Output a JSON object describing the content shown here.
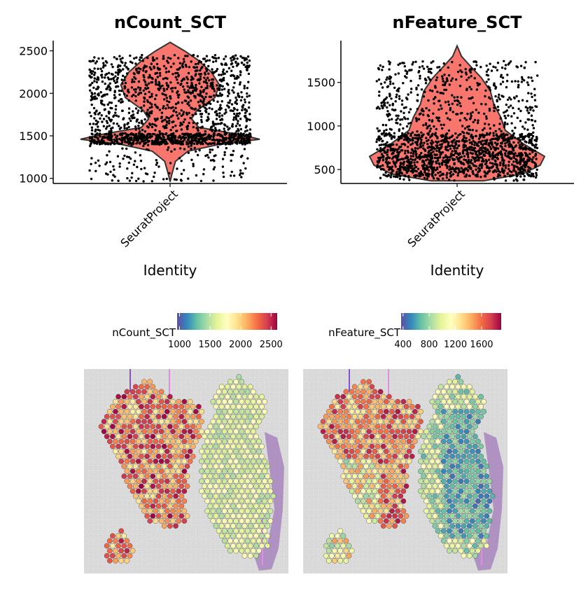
{
  "chart_data": [
    {
      "type": "violin",
      "title": "nCount_SCT",
      "xlabel": "Identity",
      "ylabel": "",
      "categories": [
        "SeuratProject"
      ],
      "ylim": [
        940,
        2620
      ],
      "yticks": [
        1000,
        1500,
        2000,
        2500
      ],
      "fill": "#F8766D",
      "density_profile": [
        {
          "y": 960,
          "w": 0.0
        },
        {
          "y": 1050,
          "w": 0.02
        },
        {
          "y": 1200,
          "w": 0.06
        },
        {
          "y": 1320,
          "w": 0.2
        },
        {
          "y": 1400,
          "w": 0.55
        },
        {
          "y": 1460,
          "w": 1.0
        },
        {
          "y": 1520,
          "w": 0.75
        },
        {
          "y": 1600,
          "w": 0.32
        },
        {
          "y": 1700,
          "w": 0.24
        },
        {
          "y": 1800,
          "w": 0.3
        },
        {
          "y": 1950,
          "w": 0.5
        },
        {
          "y": 2100,
          "w": 0.55
        },
        {
          "y": 2250,
          "w": 0.46
        },
        {
          "y": 2400,
          "w": 0.3
        },
        {
          "y": 2500,
          "w": 0.16
        },
        {
          "y": 2600,
          "w": 0.0
        }
      ],
      "points": {
        "n": 1800,
        "range": [
          960,
          2600
        ],
        "color": "#000000"
      }
    },
    {
      "type": "violin",
      "title": "nFeature_SCT",
      "xlabel": "Identity",
      "ylabel": "",
      "categories": [
        "SeuratProject"
      ],
      "ylim": [
        340,
        1980
      ],
      "yticks": [
        500,
        1000,
        1500
      ],
      "fill": "#F8766D",
      "density_profile": [
        {
          "y": 370,
          "w": 0.3
        },
        {
          "y": 450,
          "w": 0.75
        },
        {
          "y": 550,
          "w": 0.95
        },
        {
          "y": 650,
          "w": 1.0
        },
        {
          "y": 800,
          "w": 0.75
        },
        {
          "y": 950,
          "w": 0.55
        },
        {
          "y": 1100,
          "w": 0.5
        },
        {
          "y": 1250,
          "w": 0.42
        },
        {
          "y": 1400,
          "w": 0.38
        },
        {
          "y": 1550,
          "w": 0.28
        },
        {
          "y": 1700,
          "w": 0.14
        },
        {
          "y": 1800,
          "w": 0.05
        },
        {
          "y": 1920,
          "w": 0.0
        }
      ],
      "points": {
        "n": 1800,
        "range": [
          370,
          1900
        ],
        "color": "#000000"
      }
    },
    {
      "type": "spatial",
      "title": "nCount_SCT",
      "legend_title": "nCount_SCT",
      "colorscale": [
        "#5E4FA2",
        "#3288BD",
        "#66C2A5",
        "#ABDDA4",
        "#E6F598",
        "#FFFFBF",
        "#FEE08B",
        "#FDAE61",
        "#F46D43",
        "#D53E4F",
        "#9E0142"
      ],
      "range": [
        960,
        2600
      ],
      "ticks": [
        1000,
        1500,
        2000,
        2500
      ]
    },
    {
      "type": "spatial",
      "title": "nFeature_SCT",
      "legend_title": "nFeature_SCT",
      "colorscale": [
        "#5E4FA2",
        "#3288BD",
        "#66C2A5",
        "#ABDDA4",
        "#E6F598",
        "#FFFFBF",
        "#FEE08B",
        "#FDAE61",
        "#F46D43",
        "#D53E4F",
        "#9E0142"
      ],
      "range": [
        370,
        1900
      ],
      "ticks": [
        400,
        800,
        1200,
        1600
      ]
    }
  ]
}
